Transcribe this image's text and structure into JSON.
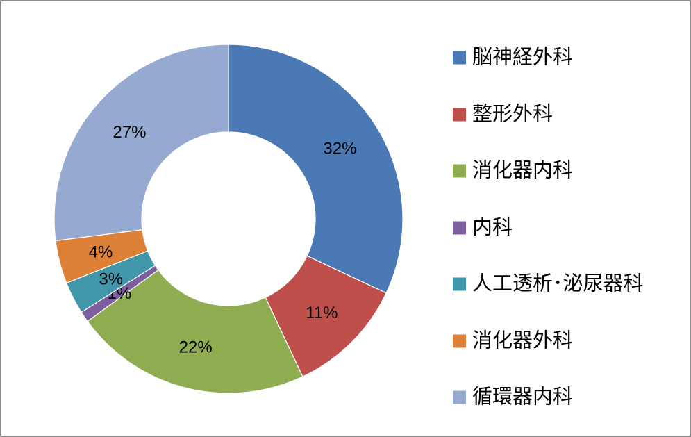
{
  "chart_data": {
    "type": "pie",
    "subtype": "donut",
    "title": "",
    "legend_position": "right",
    "direction": "clockwise",
    "start_angle_deg": 0,
    "hole_ratio": 0.5,
    "data_label_format": "percent",
    "categories": [
      "脳神経外科",
      "整形外科",
      "消化器内科",
      "内科",
      "人工透析･泌尿器科",
      "消化器外科",
      "循環器内科"
    ],
    "values": [
      32,
      11,
      22,
      1,
      3,
      4,
      27
    ],
    "data_labels": [
      "32%",
      "11%",
      "22%",
      "1%",
      "3%",
      "4%",
      "27%"
    ],
    "colors": [
      "#4A79B5",
      "#BE4F4B",
      "#90AC51",
      "#7D5FA0",
      "#4196AA",
      "#DD8138",
      "#95A9D1"
    ]
  },
  "frame": {
    "background": "#ffffff",
    "border_color": "#8a8a8a"
  }
}
